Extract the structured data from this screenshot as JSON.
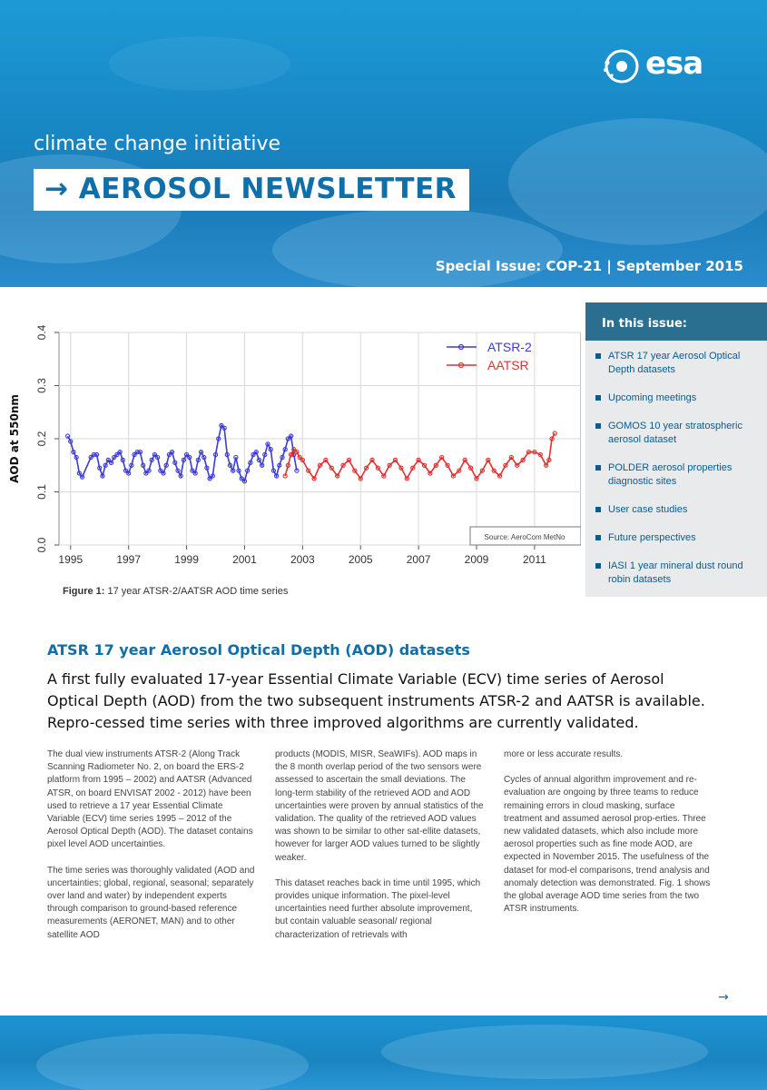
{
  "header": {
    "logo_text": "esa",
    "initiative": "climate change initiative",
    "title": "AEROSOL NEWSLETTER",
    "arrow": "→",
    "special_issue": "Special Issue: COP-21 | September 2015"
  },
  "sidebar": {
    "heading": "In this issue:",
    "items": [
      "ATSR 17 year Aerosol Optical Depth datasets",
      "Upcoming meetings",
      "GOMOS 10 year stratospheric aerosol dataset",
      "POLDER aerosol properties diagnostic sites",
      "User case studies",
      "Future perspectives",
      "IASI 1 year mineral dust round robin datasets"
    ]
  },
  "figure": {
    "label": "Figure 1:",
    "caption": " 17 year ATSR-2/AATSR AOD time series"
  },
  "chart_data": {
    "type": "line",
    "ylabel": "AOD at 550nm",
    "xlabel": "",
    "ylim": [
      0.0,
      0.4
    ],
    "xlim": [
      1994.6,
      2012.6
    ],
    "yticks": [
      "0.0",
      "0.1",
      "0.2",
      "0.3",
      "0.4"
    ],
    "xticks": [
      "1995",
      "1997",
      "1999",
      "2001",
      "2003",
      "2005",
      "2007",
      "2009",
      "2011"
    ],
    "source": "Source: AeroCom MetNo",
    "legend_position": "top-right",
    "grid": true,
    "series": [
      {
        "name": "ATSR-2",
        "color": "#3b3bd6",
        "x": [
          1994.9,
          1995.0,
          1995.1,
          1995.2,
          1995.3,
          1995.4,
          1995.7,
          1995.8,
          1995.9,
          1996.0,
          1996.1,
          1996.2,
          1996.3,
          1996.4,
          1996.5,
          1996.6,
          1996.7,
          1996.8,
          1996.9,
          1997.0,
          1997.1,
          1997.2,
          1997.3,
          1997.4,
          1997.5,
          1997.6,
          1997.7,
          1997.8,
          1997.9,
          1998.0,
          1998.1,
          1998.2,
          1998.3,
          1998.4,
          1998.5,
          1998.6,
          1998.7,
          1998.8,
          1998.9,
          1999.0,
          1999.1,
          1999.2,
          1999.3,
          1999.4,
          1999.5,
          1999.6,
          1999.7,
          1999.8,
          1999.9,
          2000.0,
          2000.1,
          2000.2,
          2000.3,
          2000.4,
          2000.5,
          2000.6,
          2000.7,
          2000.8,
          2000.9,
          2001.0,
          2001.1,
          2001.2,
          2001.3,
          2001.4,
          2001.5,
          2001.6,
          2001.7,
          2001.8,
          2001.9,
          2002.0,
          2002.1,
          2002.2,
          2002.3,
          2002.4,
          2002.5,
          2002.6,
          2002.7,
          2002.8
        ],
        "values": [
          0.205,
          0.195,
          0.175,
          0.165,
          0.135,
          0.128,
          0.165,
          0.17,
          0.17,
          0.145,
          0.13,
          0.15,
          0.16,
          0.155,
          0.165,
          0.17,
          0.175,
          0.16,
          0.14,
          0.135,
          0.15,
          0.17,
          0.175,
          0.175,
          0.15,
          0.135,
          0.14,
          0.16,
          0.17,
          0.165,
          0.14,
          0.135,
          0.15,
          0.17,
          0.175,
          0.155,
          0.14,
          0.13,
          0.16,
          0.17,
          0.165,
          0.14,
          0.135,
          0.16,
          0.175,
          0.165,
          0.145,
          0.125,
          0.13,
          0.17,
          0.2,
          0.225,
          0.22,
          0.17,
          0.15,
          0.14,
          0.165,
          0.14,
          0.125,
          0.12,
          0.14,
          0.155,
          0.17,
          0.175,
          0.16,
          0.15,
          0.17,
          0.19,
          0.18,
          0.14,
          0.13,
          0.15,
          0.165,
          0.18,
          0.2,
          0.205,
          0.17,
          0.14
        ]
      },
      {
        "name": "AATSR",
        "color": "#e03030",
        "x": [
          2002.4,
          2002.5,
          2002.6,
          2002.7,
          2002.8,
          2002.9,
          2003.0,
          2003.2,
          2003.4,
          2003.6,
          2003.8,
          2004.0,
          2004.2,
          2004.4,
          2004.6,
          2004.8,
          2005.0,
          2005.2,
          2005.4,
          2005.6,
          2005.8,
          2006.0,
          2006.2,
          2006.4,
          2006.6,
          2006.8,
          2007.0,
          2007.2,
          2007.4,
          2007.6,
          2007.8,
          2008.0,
          2008.2,
          2008.4,
          2008.6,
          2008.8,
          2009.0,
          2009.2,
          2009.4,
          2009.6,
          2009.8,
          2010.0,
          2010.2,
          2010.4,
          2010.6,
          2010.8,
          2011.0,
          2011.2,
          2011.4,
          2011.5,
          2011.6,
          2011.7
        ],
        "values": [
          0.13,
          0.15,
          0.17,
          0.18,
          0.175,
          0.165,
          0.16,
          0.14,
          0.125,
          0.15,
          0.16,
          0.145,
          0.13,
          0.15,
          0.16,
          0.14,
          0.125,
          0.145,
          0.16,
          0.145,
          0.13,
          0.15,
          0.16,
          0.145,
          0.125,
          0.145,
          0.16,
          0.15,
          0.135,
          0.15,
          0.165,
          0.15,
          0.13,
          0.14,
          0.16,
          0.145,
          0.125,
          0.14,
          0.16,
          0.14,
          0.13,
          0.15,
          0.165,
          0.15,
          0.16,
          0.175,
          0.175,
          0.17,
          0.15,
          0.16,
          0.2,
          0.21
        ]
      }
    ]
  },
  "article": {
    "title": "ATSR 17 year Aerosol Optical Depth (AOD) datasets",
    "lead": "A first fully evaluated 17-year Essential Climate Variable (ECV) time series of Aerosol Optical Depth (AOD) from the two subsequent instruments ATSR-2 and AATSR is available. Repro-cessed time series with three improved algorithms are currently validated.",
    "col1_p1": "The dual view instruments ATSR-2 (Along Track Scanning Radiometer No. 2, on board the ERS-2 platform from 1995 – 2002) and AATSR (Advanced ATSR, on board ENVISAT 2002 - 2012) have been used to retrieve a 17 year Essential Climate Variable (ECV) time series 1995 – 2012 of the Aerosol Optical Depth (AOD). The dataset contains pixel level AOD uncertainties.",
    "col1_p2": "The time series was thoroughly validated (AOD and uncertainties; global, regional, seasonal; separately over land and water) by independent experts through comparison to ground-based reference measurements (AERONET, MAN) and to other satellite AOD",
    "col2_p1": "products (MODIS, MISR, SeaWIFs). AOD maps in the 8 month overlap period of the two sensors were assessed to ascertain the small deviations. The long-term stability of the retrieved AOD and AOD uncertainties were proven by annual statistics of the validation. The quality of the retrieved AOD values was shown to be similar to other sat-ellite datasets, however for larger AOD values turned to be slightly weaker.",
    "col2_p2": "This dataset reaches back in time until 1995, which provides unique information. The pixel-level uncertainties need further absolute improvement, but contain valuable seasonal/ regional characterization of retrievals with",
    "col3_p1": "more or less accurate results.",
    "col3_p2": "Cycles of annual algorithm improvement and re-evaluation are ongoing by three teams to reduce remaining errors in cloud masking, surface treatment and assumed aerosol prop-erties. Three new validated datasets, which also include more aerosol properties such as fine mode AOD, are expected in November 2015. The usefulness of the dataset for mod-el comparisons, trend analysis and anomaly detection was demonstrated. Fig. 1 shows the global average AOD time series from the two ATSR instruments.",
    "next_arrow": "→"
  }
}
